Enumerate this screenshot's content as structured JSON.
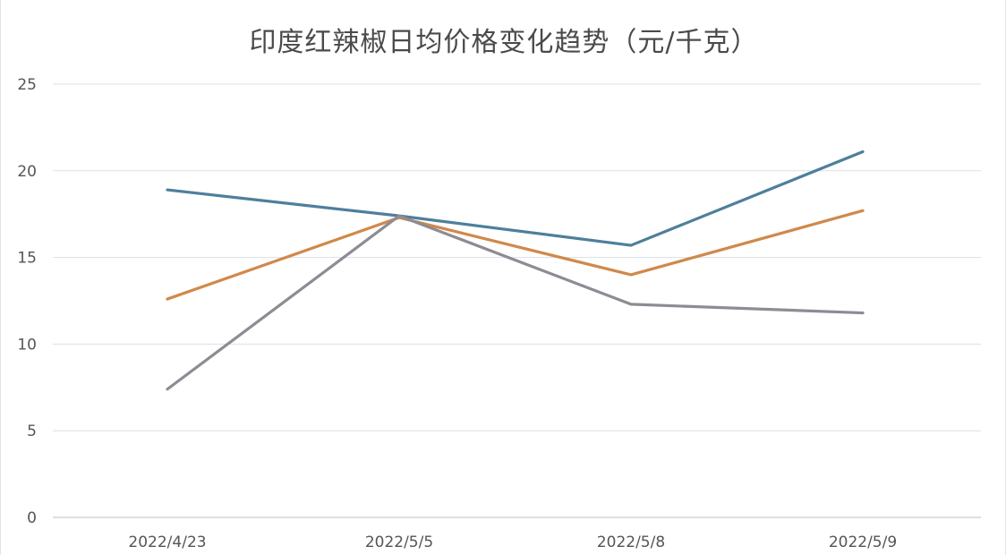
{
  "chart_data": {
    "type": "line",
    "title": "印度红辣椒日均价格变化趋势（元/千克）",
    "categories": [
      "2022/4/23",
      "2022/5/5",
      "2022/5/8",
      "2022/5/9"
    ],
    "ylim": [
      0,
      25
    ],
    "yticks": [
      0,
      5,
      10,
      15,
      20,
      25
    ],
    "grid": true,
    "legend": "none",
    "series": [
      {
        "color": "#4e7f9c",
        "values": [
          18.9,
          17.4,
          15.7,
          21.1
        ]
      },
      {
        "color": "#d0894a",
        "values": [
          12.6,
          17.3,
          14.0,
          17.7
        ]
      },
      {
        "color": "#8e8b94",
        "values": [
          7.4,
          17.4,
          12.3,
          11.8
        ]
      }
    ]
  }
}
